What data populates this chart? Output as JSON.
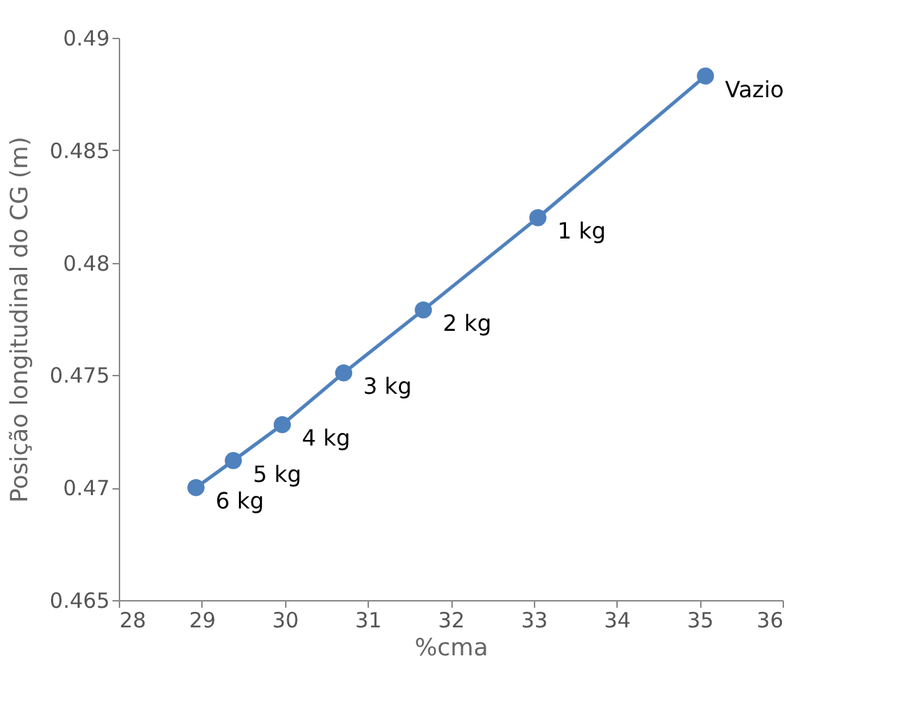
{
  "chart_data": {
    "type": "line",
    "xlabel": "%cma",
    "ylabel": "Posição longitudinal do CG (m)",
    "x": [
      28.93,
      29.38,
      29.97,
      30.71,
      31.67,
      33.05,
      35.07
    ],
    "series": [
      {
        "color": "#4f81bd",
        "values": [
          0.47,
          0.4712,
          0.4728,
          0.4751,
          0.4779,
          0.482,
          0.4883
        ]
      }
    ],
    "xlim": [
      28,
      36
    ],
    "xticks": [
      28,
      29,
      30,
      31,
      32,
      33,
      34,
      35,
      36
    ],
    "ylim": [
      0.465,
      0.49
    ],
    "yticks": [
      0.465,
      0.47,
      0.475,
      0.48,
      0.485,
      0.49
    ],
    "grid": false,
    "marker": "circle",
    "line_style": "solid",
    "annotations": [
      {
        "text": "6 kg",
        "x": 28.93,
        "y": 0.47
      },
      {
        "text": "5 kg",
        "x": 29.38,
        "y": 0.4712
      },
      {
        "text": "4 kg",
        "x": 29.97,
        "y": 0.4728
      },
      {
        "text": "3 kg",
        "x": 30.71,
        "y": 0.4751
      },
      {
        "text": "2 kg",
        "x": 31.67,
        "y": 0.4779
      },
      {
        "text": "1 kg",
        "x": 33.05,
        "y": 0.482
      },
      {
        "text": "Vazio",
        "x": 35.07,
        "y": 0.4883
      }
    ]
  }
}
